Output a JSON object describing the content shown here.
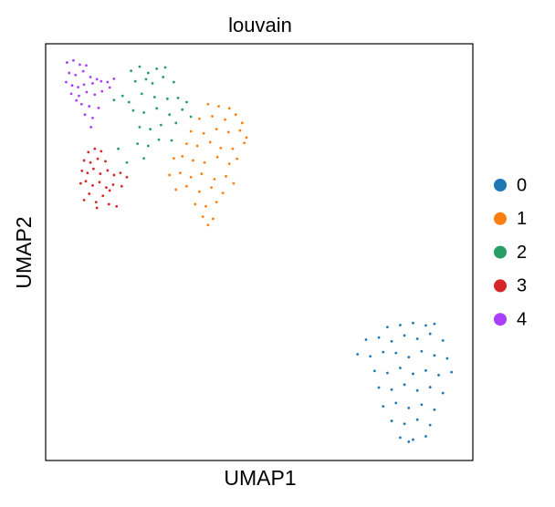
{
  "chart_data": {
    "type": "scatter",
    "title": "louvain",
    "x_label": "UMAP1",
    "y_label": "UMAP2",
    "xlim": [
      0,
      100
    ],
    "ylim": [
      0,
      100
    ],
    "grid": false,
    "legend": "right",
    "series": [
      {
        "name": "0",
        "color": "#1f77b4",
        "x": [
          80,
          83,
          86,
          89,
          91,
          75,
          78,
          81,
          84,
          87,
          90,
          93,
          73,
          76,
          79,
          82,
          85,
          88,
          91,
          94,
          77,
          80,
          83,
          86,
          89,
          92,
          95,
          78,
          81,
          84,
          87,
          90,
          93,
          79,
          82,
          85,
          88,
          91,
          81,
          84,
          87,
          90,
          83,
          86,
          89,
          85
        ],
        "values": [
          32,
          32.5,
          33,
          32.4,
          32.8,
          29,
          29.5,
          28.6,
          30,
          29.2,
          30.4,
          28.8,
          25.5,
          25,
          26,
          25.8,
          24.8,
          26.2,
          25.2,
          24.5,
          21.5,
          21,
          22.2,
          20.8,
          21.6,
          20.5,
          21.2,
          17.5,
          17,
          18.2,
          16.8,
          17.6,
          16.2,
          13,
          13.8,
          12.6,
          13.4,
          12.2,
          9.5,
          8.8,
          9.8,
          8.5,
          5.5,
          5,
          5.8,
          4.5
        ]
      },
      {
        "name": "1",
        "color": "#ff7f0e",
        "x": [
          38,
          40.5,
          43,
          36,
          39,
          42,
          44.5,
          46,
          34,
          37,
          40,
          42.8,
          45.5,
          47,
          33,
          35.5,
          38.5,
          41,
          43.8,
          46.5,
          30,
          32,
          34.5,
          37.2,
          40.2,
          43,
          44.8,
          29,
          31.5,
          34,
          36.5,
          39.5,
          42.2,
          44,
          30.5,
          33,
          36,
          38.8,
          41.5,
          35,
          37.5,
          40,
          36.8,
          39.2,
          38
        ],
        "values": [
          85.5,
          85,
          84.5,
          82,
          82.6,
          81.8,
          83,
          81,
          79,
          78.5,
          79.5,
          78.8,
          79.2,
          77.5,
          76,
          75.5,
          76.4,
          75,
          74.8,
          76.2,
          72.5,
          73,
          72,
          71.5,
          72.8,
          71.2,
          72.4,
          68.5,
          69,
          68,
          68.8,
          67.5,
          68.2,
          66.5,
          65,
          65.8,
          64.5,
          65.5,
          64.2,
          61.5,
          61,
          62,
          58.5,
          58,
          56.5
        ]
      },
      {
        "name": "2",
        "color": "#279e68",
        "x": [
          20,
          22,
          24,
          26,
          28,
          21,
          23.5,
          25,
          27.5,
          30,
          16,
          18,
          19.5,
          22.5,
          25.5,
          28.5,
          31,
          33,
          20.5,
          23,
          26,
          29,
          32,
          34,
          22,
          24.5,
          27,
          30.5,
          17,
          21.5,
          24,
          26.5,
          29.5,
          19,
          23
        ],
        "values": [
          93.5,
          94.5,
          93,
          94,
          94.3,
          91,
          91.5,
          90.5,
          92,
          90.8,
          86.5,
          87.5,
          86,
          88,
          87.2,
          86.8,
          87,
          86,
          84,
          83.5,
          84.5,
          83,
          84.2,
          82.5,
          80,
          79.5,
          80.5,
          81,
          74.8,
          76,
          75.5,
          77,
          76.8,
          71.5,
          72.5
        ]
      },
      {
        "name": "3",
        "color": "#d62728",
        "x": [
          10,
          11.5,
          13,
          9,
          10.5,
          12.2,
          14,
          8.5,
          9.8,
          11.2,
          12.8,
          14.5,
          16,
          17.5,
          19,
          8.2,
          9.4,
          11,
          12.6,
          14.2,
          15.8,
          17.8,
          10.2,
          13.4,
          15,
          9,
          11.8,
          14.8,
          16.6,
          12
        ],
        "values": [
          74,
          74.8,
          74.2,
          72,
          71.5,
          72.4,
          71.8,
          69.5,
          69,
          70,
          68.8,
          69.6,
          68.5,
          69,
          68,
          66.5,
          67,
          66,
          66.8,
          65.5,
          66.2,
          65.8,
          64,
          63.5,
          64.8,
          62.5,
          62,
          61.5,
          61,
          60.6
        ]
      },
      {
        "name": "4",
        "color": "#aa40fc",
        "x": [
          5,
          6.5,
          8,
          9.5,
          5.5,
          7,
          8.8,
          10.5,
          12,
          4.8,
          6.2,
          7.6,
          9,
          11,
          13,
          14.5,
          16,
          6,
          7.8,
          9.6,
          11.5,
          13.2,
          8.4,
          10.2,
          12.4,
          9.2,
          11,
          10.6,
          7.2,
          15
        ],
        "values": [
          95.5,
          96,
          95,
          94.8,
          93,
          92.5,
          93.4,
          92,
          91.5,
          90.8,
          90,
          89.6,
          90.2,
          90.5,
          91,
          90.8,
          91.6,
          88,
          87.5,
          88.4,
          87.8,
          88.6,
          85.5,
          85,
          84.6,
          83,
          82.2,
          80,
          86.4,
          89.5
        ]
      }
    ]
  }
}
